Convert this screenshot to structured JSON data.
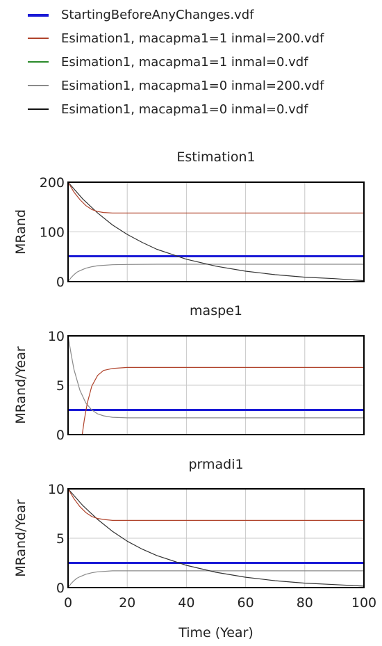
{
  "legend": [
    {
      "label": "StartingBeforeAnyChanges.vdf",
      "color": "#1a1ad6"
    },
    {
      "label": "Esimation1, macapma1=1 inmal=200.vdf",
      "color": "#b0432b"
    },
    {
      "label": "Esimation1, macapma1=1 inmal=0.vdf",
      "color": "#2a8a2a"
    },
    {
      "label": "Esimation1, macapma1=0 inmal=200.vdf",
      "color": "#8a8a8a"
    },
    {
      "label": "Esimation1, macapma1=0 inmal=0.vdf",
      "color": "#111111"
    }
  ],
  "chart_data": [
    {
      "type": "line",
      "title": "Estimation1",
      "xlabel": "",
      "ylabel": "MRand",
      "xlim": [
        0,
        100
      ],
      "ylim": [
        0,
        200
      ],
      "xticks": [
        0,
        20,
        40,
        60,
        80,
        100
      ],
      "yticks": [
        0,
        100,
        200
      ],
      "ytick_labels": [
        "0",
        "100",
        "200"
      ],
      "grid": true,
      "series": [
        {
          "name": "StartingBeforeAnyChanges.vdf",
          "color": "#1a1ad6",
          "width": 3,
          "x": [
            0,
            100
          ],
          "y": [
            51,
            51
          ]
        },
        {
          "name": "Esimation1, macapma1=0 inmal=200.vdf",
          "color": "#8a8a8a",
          "width": 1.2,
          "x": [
            0,
            1,
            2,
            3,
            4,
            6,
            8,
            10,
            15,
            20,
            30,
            50,
            100
          ],
          "y": [
            0,
            8,
            14,
            19,
            22,
            27,
            30,
            32,
            34,
            34.5,
            35,
            35,
            35
          ]
        },
        {
          "name": "Esimation1, macapma1=0 inmal=0.vdf",
          "color": "#333333",
          "width": 1.2,
          "x": [
            0,
            5,
            10,
            15,
            20,
            25,
            30,
            40,
            50,
            60,
            70,
            80,
            90,
            100
          ],
          "y": [
            200,
            166,
            138,
            114,
            95,
            79,
            65,
            45,
            31,
            21,
            14,
            9,
            6,
            2
          ]
        },
        {
          "name": "Esimation1, macapma1=1 inmal=200.vdf",
          "color": "#b0432b",
          "width": 1.2,
          "x": [
            0,
            2,
            4,
            6,
            8,
            10,
            12,
            15,
            20,
            100
          ],
          "y": [
            200,
            180,
            165,
            153,
            145,
            141,
            139,
            138,
            138,
            138
          ]
        }
      ]
    },
    {
      "type": "line",
      "title": "maspe1",
      "xlabel": "",
      "ylabel": "MRand/Year",
      "xlim": [
        0,
        100
      ],
      "ylim": [
        0,
        10
      ],
      "xticks": [
        0,
        20,
        40,
        60,
        80,
        100
      ],
      "yticks": [
        0,
        5,
        10
      ],
      "ytick_labels": [
        "0",
        "5",
        "10"
      ],
      "grid": true,
      "series": [
        {
          "name": "StartingBeforeAnyChanges.vdf",
          "color": "#1a1ad6",
          "width": 3,
          "x": [
            0,
            100
          ],
          "y": [
            2.5,
            2.5
          ]
        },
        {
          "name": "Esimation1, macapma1=0 inmal=200.vdf",
          "color": "#8a8a8a",
          "width": 1.2,
          "x": [
            0,
            1,
            2,
            4,
            6,
            8,
            10,
            12,
            15,
            20,
            100
          ],
          "y": [
            10,
            8.2,
            6.6,
            4.5,
            3.2,
            2.5,
            2.1,
            1.9,
            1.75,
            1.7,
            1.7
          ]
        },
        {
          "name": "Esimation1, macapma1=1 inmal=200.vdf",
          "color": "#b0432b",
          "width": 1.2,
          "x": [
            0,
            4.8,
            5.5,
            6.5,
            8,
            10,
            12,
            15,
            20,
            100
          ],
          "y": [
            0,
            0,
            1.5,
            3.2,
            4.9,
            6.0,
            6.5,
            6.7,
            6.8,
            6.8
          ]
        }
      ]
    },
    {
      "type": "line",
      "title": "prmadi1",
      "xlabel": "Time (Year)",
      "ylabel": "MRand/Year",
      "xlim": [
        0,
        100
      ],
      "ylim": [
        0,
        10
      ],
      "xticks": [
        0,
        20,
        40,
        60,
        80,
        100
      ],
      "xtick_labels": [
        "0",
        "20",
        "40",
        "60",
        "80",
        "100"
      ],
      "yticks": [
        0,
        5,
        10
      ],
      "ytick_labels": [
        "0",
        "5",
        "10"
      ],
      "grid": true,
      "series": [
        {
          "name": "StartingBeforeAnyChanges.vdf",
          "color": "#1a1ad6",
          "width": 3,
          "x": [
            0,
            100
          ],
          "y": [
            2.5,
            2.5
          ]
        },
        {
          "name": "Esimation1, macapma1=0 inmal=200.vdf",
          "color": "#8a8a8a",
          "width": 1.2,
          "x": [
            0,
            1,
            2,
            3,
            4,
            6,
            8,
            10,
            15,
            20,
            100
          ],
          "y": [
            0,
            0.4,
            0.7,
            0.95,
            1.1,
            1.35,
            1.5,
            1.6,
            1.7,
            1.7,
            1.7
          ]
        },
        {
          "name": "Esimation1, macapma1=0 inmal=0.vdf",
          "color": "#333333",
          "width": 1.2,
          "x": [
            0,
            5,
            10,
            15,
            20,
            25,
            30,
            40,
            50,
            60,
            70,
            80,
            90,
            100
          ],
          "y": [
            10,
            8.3,
            6.9,
            5.7,
            4.7,
            3.9,
            3.25,
            2.25,
            1.55,
            1.05,
            0.7,
            0.45,
            0.3,
            0.15
          ]
        },
        {
          "name": "Esimation1, macapma1=1 inmal=200.vdf",
          "color": "#b0432b",
          "width": 1.2,
          "x": [
            0,
            2,
            4,
            6,
            8,
            10,
            12,
            15,
            20,
            100
          ],
          "y": [
            10,
            9.0,
            8.2,
            7.6,
            7.2,
            7.0,
            6.9,
            6.8,
            6.8,
            6.8
          ]
        }
      ]
    }
  ]
}
